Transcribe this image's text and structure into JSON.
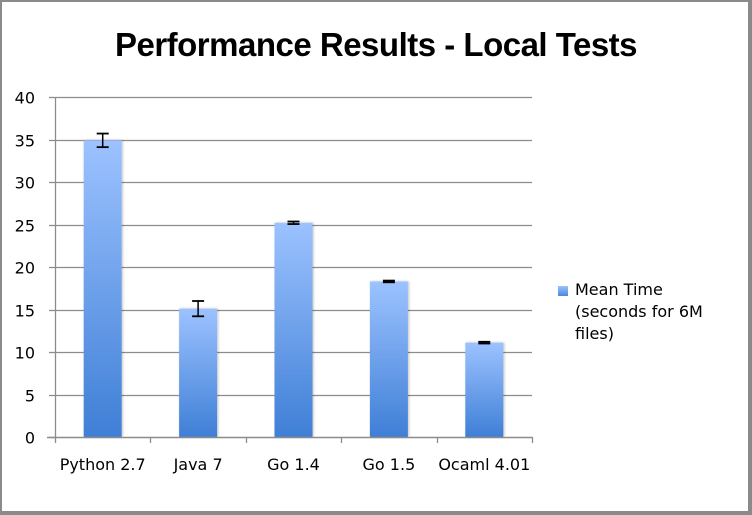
{
  "chart_data": {
    "type": "bar",
    "title": "Performance Results - Local Tests",
    "xlabel": "",
    "ylabel": "",
    "categories": [
      "Python 2.7",
      "Java 7",
      "Go 1.4",
      "Go 1.5",
      "Ocaml 4.01"
    ],
    "series": [
      {
        "name": "Mean Time (seconds for 6M files)",
        "values": [
          34.9,
          15.1,
          25.2,
          18.3,
          11.1
        ],
        "error": [
          0.8,
          0.9,
          0.15,
          0.1,
          0.1
        ]
      }
    ],
    "ylim": [
      0,
      40
    ],
    "yticks": [
      0,
      5,
      10,
      15,
      20,
      25,
      30,
      35,
      40
    ],
    "grid": true,
    "legend_position": "right",
    "bar_color_top": "#9cc2ff",
    "bar_color_bottom": "#3f7fd6"
  },
  "title": "Performance Results - Local Tests",
  "legend": {
    "label": "Mean Time (seconds for 6M files)"
  },
  "axis": {
    "yticks": [
      "0",
      "5",
      "10",
      "15",
      "20",
      "25",
      "30",
      "35",
      "40"
    ],
    "categories": [
      "Python 2.7",
      "Java 7",
      "Go 1.4",
      "Go 1.5",
      "Ocaml 4.01"
    ]
  }
}
